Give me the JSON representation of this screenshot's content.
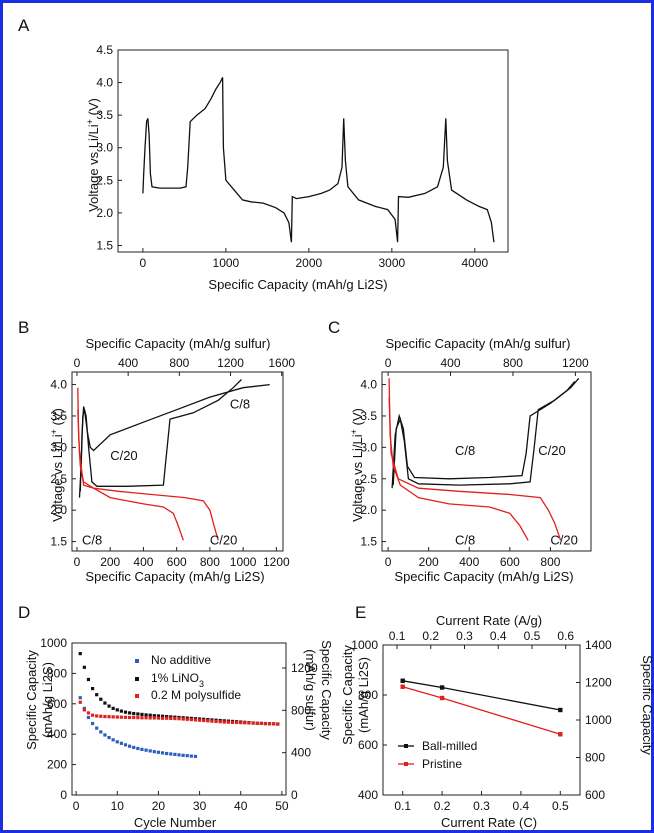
{
  "chart_data": [
    {
      "panel": "A",
      "type": "line",
      "xlabel": "Specific Capacity (mAh/g Li2S)",
      "ylabel": "Voltage vs Li/Li+ (V)",
      "xlim": [
        -300,
        4400
      ],
      "ylim": [
        1.4,
        4.5
      ],
      "xticks": [
        "0",
        "1000",
        "2000",
        "3000",
        "4000"
      ],
      "yticks": [
        "1.5",
        "2.0",
        "2.5",
        "3.0",
        "3.5",
        "4.0",
        "4.5"
      ],
      "series": [
        {
          "color": "#111111",
          "points": [
            [
              0,
              2.3
            ],
            [
              10,
              2.6
            ],
            [
              25,
              3.0
            ],
            [
              45,
              3.4
            ],
            [
              60,
              3.45
            ],
            [
              75,
              3.2
            ],
            [
              90,
              2.6
            ],
            [
              110,
              2.4
            ],
            [
              200,
              2.38
            ],
            [
              450,
              2.38
            ],
            [
              520,
              2.4
            ],
            [
              540,
              2.7
            ],
            [
              570,
              3.4
            ],
            [
              650,
              3.5
            ],
            [
              750,
              3.6
            ],
            [
              820,
              3.75
            ],
            [
              880,
              3.9
            ],
            [
              930,
              4.0
            ],
            [
              960,
              4.08
            ],
            [
              970,
              3.0
            ],
            [
              1000,
              2.5
            ],
            [
              1100,
              2.35
            ],
            [
              1200,
              2.2
            ],
            [
              1300,
              2.17
            ],
            [
              1450,
              2.15
            ],
            [
              1600,
              2.08
            ],
            [
              1700,
              2.0
            ],
            [
              1760,
              1.85
            ],
            [
              1790,
              1.55
            ],
            [
              1800,
              2.25
            ],
            [
              1850,
              2.22
            ],
            [
              2000,
              2.25
            ],
            [
              2150,
              2.3
            ],
            [
              2250,
              2.35
            ],
            [
              2350,
              2.45
            ],
            [
              2400,
              2.7
            ],
            [
              2420,
              3.45
            ],
            [
              2440,
              2.8
            ],
            [
              2470,
              2.4
            ],
            [
              2600,
              2.2
            ],
            [
              2800,
              2.1
            ],
            [
              2950,
              2.05
            ],
            [
              3040,
              1.9
            ],
            [
              3070,
              1.55
            ],
            [
              3080,
              2.25
            ],
            [
              3200,
              2.24
            ],
            [
              3400,
              2.3
            ],
            [
              3550,
              2.4
            ],
            [
              3620,
              2.7
            ],
            [
              3650,
              3.45
            ],
            [
              3670,
              2.8
            ],
            [
              3720,
              2.35
            ],
            [
              3900,
              2.2
            ],
            [
              4050,
              2.1
            ],
            [
              4150,
              2.05
            ],
            [
              4200,
              1.85
            ],
            [
              4230,
              1.55
            ]
          ]
        }
      ]
    },
    {
      "panel": "B",
      "type": "line",
      "xlabel": "Specific Capacity (mAh/g Li2S)",
      "x2label": "Specific Capacity (mAh/g sulfur)",
      "ylabel": "Voltage vs Li/Li+ (V)",
      "xlim": [
        -30,
        1240
      ],
      "ylim": [
        1.35,
        4.2
      ],
      "xticks": [
        "0",
        "200",
        "400",
        "600",
        "800",
        "1000",
        "1200"
      ],
      "x2ticks": [
        "0",
        "400",
        "800",
        "1200",
        "1600"
      ],
      "yticks": [
        "1.5",
        "2.0",
        "2.5",
        "3.0",
        "3.5",
        "4.0"
      ],
      "annotations": [
        {
          "text": "C/8",
          "color": "#111111"
        },
        {
          "text": "C/20",
          "color": "#111111"
        },
        {
          "text": "C/8",
          "color": "#e0201c"
        },
        {
          "text": "C/20",
          "color": "#e0201c"
        }
      ],
      "series": [
        {
          "name": "C/8 charge",
          "color": "#111111",
          "points": [
            [
              15,
              2.2
            ],
            [
              25,
              2.7
            ],
            [
              35,
              3.5
            ],
            [
              45,
              3.6
            ],
            [
              55,
              3.4
            ],
            [
              65,
              3.2
            ],
            [
              80,
              3.0
            ],
            [
              100,
              2.95
            ],
            [
              200,
              3.2
            ],
            [
              400,
              3.4
            ],
            [
              600,
              3.6
            ],
            [
              800,
              3.8
            ],
            [
              1000,
              3.95
            ],
            [
              1160,
              4.0
            ]
          ]
        },
        {
          "name": "C/20 charge",
          "color": "#111111",
          "points": [
            [
              20,
              2.3
            ],
            [
              30,
              3.2
            ],
            [
              40,
              3.65
            ],
            [
              55,
              3.5
            ],
            [
              70,
              3.0
            ],
            [
              90,
              2.45
            ],
            [
              120,
              2.38
            ],
            [
              300,
              2.38
            ],
            [
              520,
              2.4
            ],
            [
              535,
              2.8
            ],
            [
              560,
              3.45
            ],
            [
              700,
              3.55
            ],
            [
              850,
              3.75
            ],
            [
              940,
              3.95
            ],
            [
              990,
              4.08
            ]
          ]
        },
        {
          "name": "C/8 discharge",
          "color": "#e0201c",
          "points": [
            [
              5,
              3.95
            ],
            [
              10,
              3.2
            ],
            [
              20,
              2.7
            ],
            [
              40,
              2.45
            ],
            [
              100,
              2.35
            ],
            [
              200,
              2.2
            ],
            [
              400,
              2.1
            ],
            [
              520,
              2.05
            ],
            [
              580,
              1.95
            ],
            [
              610,
              1.75
            ],
            [
              640,
              1.52
            ]
          ]
        },
        {
          "name": "C/20 discharge",
          "color": "#e0201c",
          "points": [
            [
              5,
              3.6
            ],
            [
              15,
              2.9
            ],
            [
              40,
              2.4
            ],
            [
              100,
              2.35
            ],
            [
              250,
              2.3
            ],
            [
              450,
              2.25
            ],
            [
              650,
              2.2
            ],
            [
              760,
              2.15
            ],
            [
              800,
              2.0
            ],
            [
              820,
              1.8
            ],
            [
              850,
              1.52
            ]
          ]
        }
      ]
    },
    {
      "panel": "C",
      "type": "line",
      "xlabel": "Specific Capacity (mAh/g Li2S)",
      "x2label": "Specific Capacity (mAh/g sulfur)",
      "ylabel": "Voltage vs Li/Li+ (V)",
      "xlim": [
        -30,
        1000
      ],
      "ylim": [
        1.35,
        4.2
      ],
      "xticks": [
        "0",
        "200",
        "400",
        "600",
        "800"
      ],
      "x2ticks": [
        "0",
        "400",
        "800",
        "1200"
      ],
      "yticks": [
        "1.5",
        "2.0",
        "2.5",
        "3.0",
        "3.5",
        "4.0"
      ],
      "annotations": [
        {
          "text": "C/8",
          "color": "#111111"
        },
        {
          "text": "C/20",
          "color": "#111111"
        },
        {
          "text": "C/8",
          "color": "#e0201c"
        },
        {
          "text": "C/20",
          "color": "#e0201c"
        }
      ],
      "series": [
        {
          "name": "C/8 charge",
          "color": "#111111",
          "points": [
            [
              20,
              2.35
            ],
            [
              35,
              3.2
            ],
            [
              55,
              3.5
            ],
            [
              75,
              3.3
            ],
            [
              95,
              2.7
            ],
            [
              130,
              2.52
            ],
            [
              300,
              2.5
            ],
            [
              500,
              2.52
            ],
            [
              660,
              2.55
            ],
            [
              680,
              2.9
            ],
            [
              700,
              3.5
            ],
            [
              800,
              3.7
            ],
            [
              880,
              3.9
            ],
            [
              920,
              4.05
            ]
          ]
        },
        {
          "name": "C/20 charge",
          "color": "#111111",
          "points": [
            [
              25,
              2.4
            ],
            [
              40,
              3.3
            ],
            [
              60,
              3.45
            ],
            [
              80,
              3.1
            ],
            [
              100,
              2.5
            ],
            [
              150,
              2.42
            ],
            [
              350,
              2.4
            ],
            [
              600,
              2.42
            ],
            [
              700,
              2.45
            ],
            [
              720,
              3.0
            ],
            [
              740,
              3.6
            ],
            [
              820,
              3.75
            ],
            [
              900,
              3.95
            ],
            [
              940,
              4.1
            ]
          ]
        },
        {
          "name": "C/8 discharge",
          "color": "#e0201c",
          "points": [
            [
              5,
              4.1
            ],
            [
              10,
              3.2
            ],
            [
              25,
              2.7
            ],
            [
              60,
              2.4
            ],
            [
              150,
              2.2
            ],
            [
              300,
              2.1
            ],
            [
              500,
              2.05
            ],
            [
              600,
              1.95
            ],
            [
              650,
              1.75
            ],
            [
              690,
              1.52
            ]
          ]
        },
        {
          "name": "C/20 discharge",
          "color": "#e0201c",
          "points": [
            [
              5,
              3.8
            ],
            [
              15,
              2.9
            ],
            [
              50,
              2.5
            ],
            [
              150,
              2.35
            ],
            [
              350,
              2.3
            ],
            [
              600,
              2.25
            ],
            [
              750,
              2.2
            ],
            [
              790,
              2.0
            ],
            [
              820,
              1.8
            ],
            [
              850,
              1.52
            ]
          ]
        }
      ]
    },
    {
      "panel": "D",
      "type": "scatter",
      "xlabel": "Cycle Number",
      "ylabel": "Specific Capacity (mAh/g Li2S)",
      "y2label": "Specific Capacity (mAh/g sulfur)",
      "xlim": [
        -1,
        51
      ],
      "ylim": [
        0,
        1000
      ],
      "xticks": [
        "0",
        "10",
        "20",
        "30",
        "40",
        "50"
      ],
      "yticks": [
        "0",
        "200",
        "400",
        "600",
        "800",
        "1000"
      ],
      "y2ticks": [
        "0",
        "400",
        "800",
        "1200"
      ],
      "legend_position": "top-right",
      "series": [
        {
          "name": "No additive",
          "color": "#2a5fc0",
          "values": [
            640,
            570,
            510,
            470,
            440,
            415,
            395,
            378,
            363,
            350,
            340,
            330,
            321,
            313,
            306,
            300,
            295,
            290,
            285,
            281,
            277,
            273,
            270,
            267,
            264,
            261,
            259,
            256,
            254
          ]
        },
        {
          "name": "1% LiNO3",
          "color": "#111111",
          "values": [
            930,
            840,
            760,
            700,
            660,
            630,
            605,
            585,
            570,
            560,
            552,
            545,
            540,
            536,
            533,
            530,
            527,
            525,
            522,
            520,
            518,
            516,
            514,
            512,
            510,
            508,
            506,
            504,
            502,
            500,
            498,
            496,
            494,
            492,
            490,
            488,
            486,
            484,
            482,
            480,
            478,
            476,
            474,
            472,
            471,
            470,
            469,
            468,
            467
          ]
        },
        {
          "name": "0.2 M polysulfide",
          "color": "#e0201c",
          "values": [
            610,
            560,
            540,
            525,
            520,
            518,
            516,
            515,
            514,
            513,
            512,
            511,
            510,
            510,
            509,
            508,
            508,
            507,
            507,
            506,
            505,
            505,
            504,
            503,
            502,
            500,
            498,
            496,
            494,
            492,
            490,
            488,
            486,
            484,
            482,
            480,
            479,
            478,
            477,
            476,
            475,
            474,
            473,
            472,
            471,
            470,
            469,
            468,
            467
          ]
        }
      ]
    },
    {
      "panel": "E",
      "type": "line",
      "xlabel": "Current Rate (C)",
      "x2label": "Current Rate (A/g)",
      "ylabel": "Specific Capacity (mAh/g Li2S)",
      "y2label": "Specific Capacity (mAh/g sulfur)",
      "xlim": [
        0.05,
        0.55
      ],
      "ylim": [
        400,
        1000
      ],
      "xticks": [
        "0.1",
        "0.2",
        "0.3",
        "0.4",
        "0.5"
      ],
      "x2ticks": [
        "0.1",
        "0.2",
        "0.3",
        "0.4",
        "0.5",
        "0.6"
      ],
      "yticks": [
        "400",
        "600",
        "800",
        "1000"
      ],
      "y2ticks": [
        "600",
        "800",
        "1000",
        "1200",
        "1400"
      ],
      "legend_position": "bottom-left",
      "series": [
        {
          "name": "Ball-milled",
          "color": "#111111",
          "x": [
            0.1,
            0.2,
            0.5
          ],
          "values": [
            857,
            830,
            740
          ]
        },
        {
          "name": "Pristine",
          "color": "#e0201c",
          "x": [
            0.1,
            0.2,
            0.5
          ],
          "values": [
            833,
            788,
            643
          ]
        }
      ]
    }
  ],
  "labels": {
    "A": "A",
    "B": "B",
    "C": "C",
    "D": "D",
    "E": "E",
    "volt_prefix": "Voltage vs Li/Li",
    "volt_sup": "+",
    "volt_suffix": " (V)",
    "cap_li2s_prefix": "Specific Capacity (mAh/g Li",
    "cap_li2s_suffix": "2S)",
    "cap_sulfur": "Specific Capacity (mAh/g sulfur)",
    "cap_li2s_short_1": "Specific Capacity",
    "cap_li2s_short_2a": "(mAh/g Li",
    "cap_li2s_short_2b": "2S)",
    "cap_sulfur_short_1": "Specific Capacity",
    "cap_sulfur_short_2": "(mAh/g sulfur)",
    "cycle_number": "Cycle Number",
    "current_rate_c": "Current Rate (C)",
    "current_rate_ag": "Current Rate (A/g)",
    "legend_no_additive": "No additive",
    "legend_lino3_a": "1% LiNO",
    "legend_lino3_b": "3",
    "legend_poly": "0.2 M polysulfide",
    "legend_ball": "Ball-milled",
    "legend_pristine": "Pristine"
  }
}
